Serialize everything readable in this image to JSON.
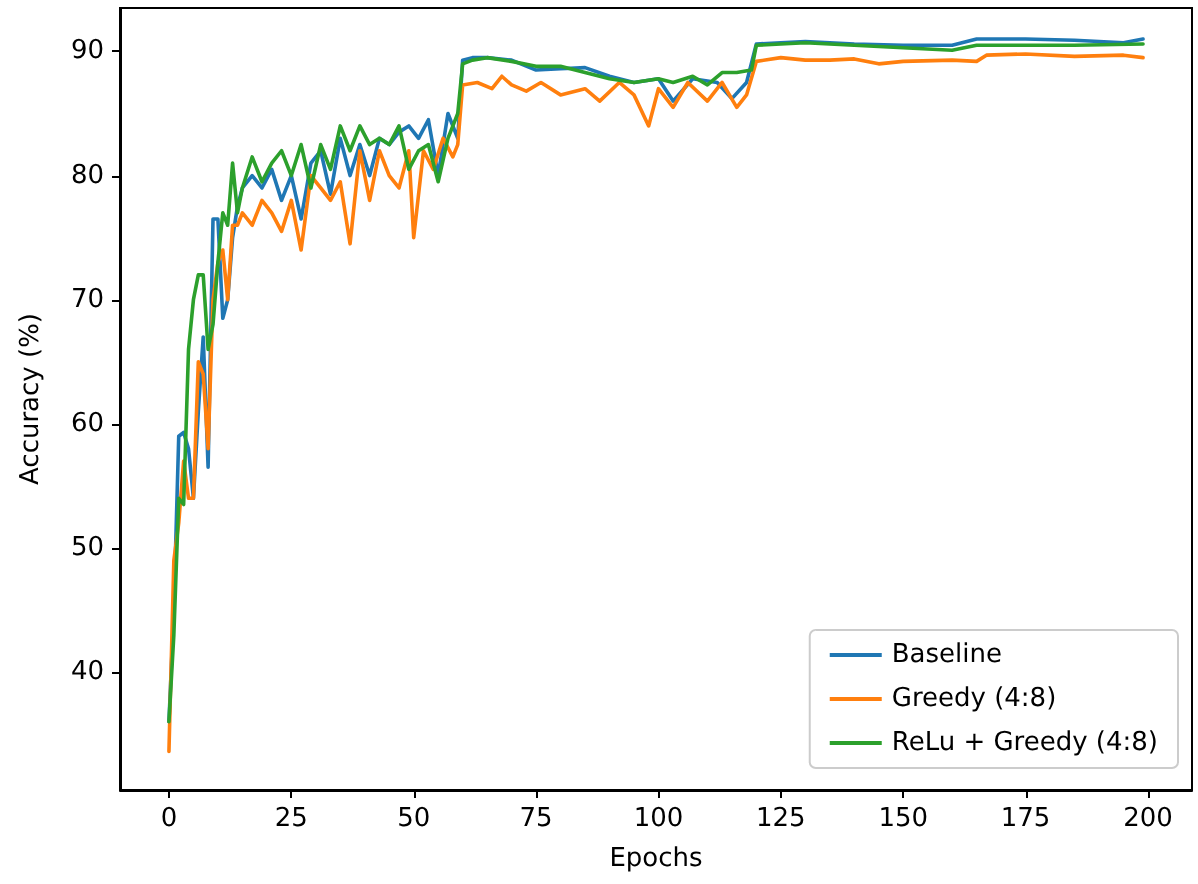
{
  "chart_data": {
    "type": "line",
    "xlabel": "Epochs",
    "ylabel": "Accuracy (%)",
    "xlim": [
      -10,
      209
    ],
    "xticks": [
      0,
      25,
      50,
      75,
      100,
      125,
      150,
      175,
      200
    ],
    "ylim": [
      30.5,
      93.5
    ],
    "yticks": [
      40,
      50,
      60,
      70,
      80,
      90
    ],
    "grid": false,
    "legend": "bottom right",
    "marker": "none",
    "line_style": "solid",
    "series": [
      {
        "name": "Baseline",
        "color": "#1f77b4",
        "x": [
          0,
          1,
          2,
          3,
          4,
          5,
          6,
          7,
          8,
          9,
          10,
          11,
          12,
          13,
          14,
          15,
          17,
          19,
          21,
          23,
          25,
          27,
          29,
          31,
          33,
          35,
          37,
          39,
          41,
          43,
          45,
          47,
          49,
          51,
          53,
          55,
          57,
          59,
          60,
          62,
          65,
          70,
          75,
          80,
          85,
          90,
          95,
          100,
          103,
          107,
          112,
          115,
          118,
          120,
          125,
          130,
          140,
          150,
          160,
          165,
          175,
          185,
          195,
          199
        ],
        "values": [
          36,
          45,
          59,
          59.3,
          58,
          54,
          61,
          67,
          56.5,
          76.5,
          76.5,
          68.5,
          70,
          75,
          77.5,
          79,
          80,
          79,
          80.5,
          78,
          80,
          76.5,
          81,
          82,
          78.5,
          83,
          80,
          82.5,
          80,
          83,
          82.5,
          83.5,
          84,
          83,
          84.5,
          80,
          85,
          83,
          89.3,
          89.5,
          89.5,
          89.3,
          88.5,
          88.6,
          88.7,
          88,
          87.5,
          87.8,
          86,
          87.8,
          87.5,
          86.2,
          87.5,
          90.6,
          90.7,
          90.8,
          90.6,
          90.5,
          90.5,
          91,
          91,
          90.9,
          90.7,
          91
        ]
      },
      {
        "name": "Greedy (4:8)",
        "color": "#ff7f0e",
        "x": [
          0,
          1,
          2,
          3,
          4,
          5,
          6,
          7,
          8,
          9,
          10,
          11,
          12,
          13,
          14,
          15,
          17,
          19,
          21,
          23,
          25,
          27,
          29,
          31,
          33,
          35,
          37,
          39,
          41,
          43,
          45,
          47,
          49,
          50,
          52,
          54,
          56,
          58,
          59,
          60,
          63,
          66,
          68,
          70,
          73,
          76,
          80,
          85,
          88,
          92,
          95,
          98,
          100,
          103,
          106,
          110,
          113,
          116,
          118,
          120,
          125,
          130,
          135,
          140,
          145,
          150,
          160,
          165,
          167,
          175,
          185,
          195,
          199
        ],
        "values": [
          33.6,
          49,
          52,
          57,
          54,
          54,
          65,
          64,
          58,
          70,
          73,
          74,
          70,
          76,
          76,
          77,
          76,
          78,
          77,
          75.5,
          78,
          74,
          80,
          79,
          78,
          79.5,
          74.5,
          82,
          78,
          82,
          80,
          79,
          82,
          75,
          82,
          80.5,
          83,
          81.5,
          82.5,
          87.3,
          87.5,
          87,
          88,
          87.3,
          86.8,
          87.5,
          86.5,
          87,
          86,
          87.5,
          86.5,
          84,
          87,
          85.5,
          87.5,
          86,
          87.5,
          85.5,
          86.5,
          89.2,
          89.5,
          89.3,
          89.3,
          89.4,
          89,
          89.2,
          89.3,
          89.2,
          89.7,
          89.8,
          89.6,
          89.7,
          89.5
        ]
      },
      {
        "name": "ReLu + Greedy (4:8)",
        "color": "#2ca02c",
        "x": [
          0,
          1,
          2,
          3,
          4,
          5,
          6,
          7,
          8,
          9,
          10,
          11,
          12,
          13,
          14,
          15,
          17,
          19,
          21,
          23,
          25,
          27,
          29,
          31,
          33,
          35,
          37,
          39,
          41,
          43,
          45,
          47,
          49,
          51,
          53,
          55,
          57,
          59,
          60,
          62,
          65,
          70,
          75,
          80,
          85,
          90,
          95,
          100,
          103,
          107,
          110,
          113,
          116,
          119,
          120,
          125,
          130,
          140,
          150,
          160,
          165,
          175,
          185,
          199
        ],
        "values": [
          36,
          43,
          54,
          53.5,
          66,
          70,
          72,
          72,
          66,
          68,
          73,
          77,
          76,
          81,
          77,
          79,
          81.5,
          79.5,
          81,
          82,
          80,
          82.5,
          79,
          82.5,
          80.5,
          84,
          82,
          84,
          82.5,
          83,
          82.5,
          84,
          80.5,
          82,
          82.5,
          79.5,
          83,
          85,
          89,
          89.3,
          89.5,
          89.2,
          88.8,
          88.8,
          88.3,
          87.8,
          87.5,
          87.8,
          87.5,
          88,
          87.3,
          88.3,
          88.3,
          88.5,
          90.5,
          90.6,
          90.7,
          90.5,
          90.3,
          90.1,
          90.5,
          90.5,
          90.5,
          90.6
        ]
      }
    ]
  }
}
